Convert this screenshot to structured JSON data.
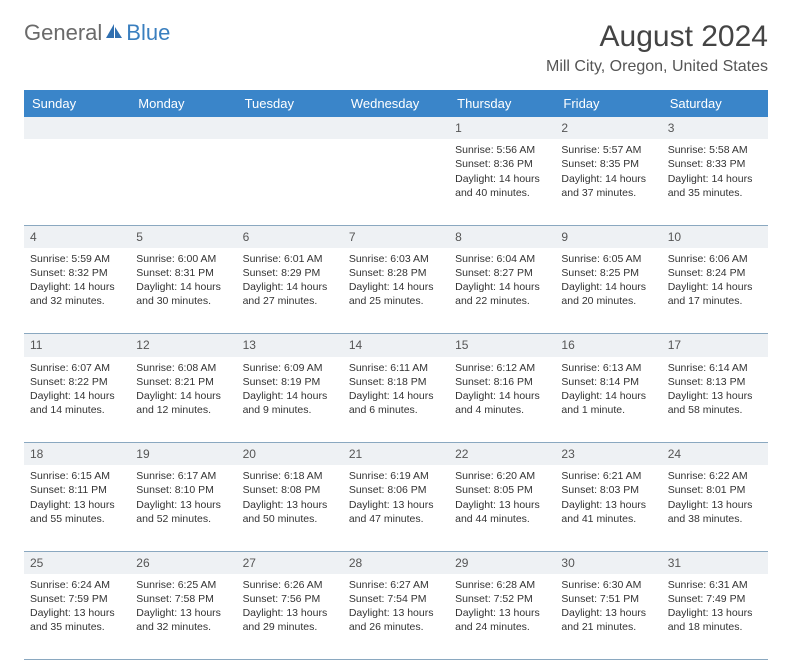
{
  "brand": {
    "general": "General",
    "blue": "Blue"
  },
  "title": "August 2024",
  "location": "Mill City, Oregon, United States",
  "header_color": "#3a85c9",
  "daynum_bg": "#eef1f4",
  "border_color": "#8aa8c0",
  "weekdays": [
    "Sunday",
    "Monday",
    "Tuesday",
    "Wednesday",
    "Thursday",
    "Friday",
    "Saturday"
  ],
  "weeks": [
    [
      null,
      null,
      null,
      null,
      {
        "n": "1",
        "sr": "Sunrise: 5:56 AM",
        "ss": "Sunset: 8:36 PM",
        "d1": "Daylight: 14 hours",
        "d2": "and 40 minutes."
      },
      {
        "n": "2",
        "sr": "Sunrise: 5:57 AM",
        "ss": "Sunset: 8:35 PM",
        "d1": "Daylight: 14 hours",
        "d2": "and 37 minutes."
      },
      {
        "n": "3",
        "sr": "Sunrise: 5:58 AM",
        "ss": "Sunset: 8:33 PM",
        "d1": "Daylight: 14 hours",
        "d2": "and 35 minutes."
      }
    ],
    [
      {
        "n": "4",
        "sr": "Sunrise: 5:59 AM",
        "ss": "Sunset: 8:32 PM",
        "d1": "Daylight: 14 hours",
        "d2": "and 32 minutes."
      },
      {
        "n": "5",
        "sr": "Sunrise: 6:00 AM",
        "ss": "Sunset: 8:31 PM",
        "d1": "Daylight: 14 hours",
        "d2": "and 30 minutes."
      },
      {
        "n": "6",
        "sr": "Sunrise: 6:01 AM",
        "ss": "Sunset: 8:29 PM",
        "d1": "Daylight: 14 hours",
        "d2": "and 27 minutes."
      },
      {
        "n": "7",
        "sr": "Sunrise: 6:03 AM",
        "ss": "Sunset: 8:28 PM",
        "d1": "Daylight: 14 hours",
        "d2": "and 25 minutes."
      },
      {
        "n": "8",
        "sr": "Sunrise: 6:04 AM",
        "ss": "Sunset: 8:27 PM",
        "d1": "Daylight: 14 hours",
        "d2": "and 22 minutes."
      },
      {
        "n": "9",
        "sr": "Sunrise: 6:05 AM",
        "ss": "Sunset: 8:25 PM",
        "d1": "Daylight: 14 hours",
        "d2": "and 20 minutes."
      },
      {
        "n": "10",
        "sr": "Sunrise: 6:06 AM",
        "ss": "Sunset: 8:24 PM",
        "d1": "Daylight: 14 hours",
        "d2": "and 17 minutes."
      }
    ],
    [
      {
        "n": "11",
        "sr": "Sunrise: 6:07 AM",
        "ss": "Sunset: 8:22 PM",
        "d1": "Daylight: 14 hours",
        "d2": "and 14 minutes."
      },
      {
        "n": "12",
        "sr": "Sunrise: 6:08 AM",
        "ss": "Sunset: 8:21 PM",
        "d1": "Daylight: 14 hours",
        "d2": "and 12 minutes."
      },
      {
        "n": "13",
        "sr": "Sunrise: 6:09 AM",
        "ss": "Sunset: 8:19 PM",
        "d1": "Daylight: 14 hours",
        "d2": "and 9 minutes."
      },
      {
        "n": "14",
        "sr": "Sunrise: 6:11 AM",
        "ss": "Sunset: 8:18 PM",
        "d1": "Daylight: 14 hours",
        "d2": "and 6 minutes."
      },
      {
        "n": "15",
        "sr": "Sunrise: 6:12 AM",
        "ss": "Sunset: 8:16 PM",
        "d1": "Daylight: 14 hours",
        "d2": "and 4 minutes."
      },
      {
        "n": "16",
        "sr": "Sunrise: 6:13 AM",
        "ss": "Sunset: 8:14 PM",
        "d1": "Daylight: 14 hours",
        "d2": "and 1 minute."
      },
      {
        "n": "17",
        "sr": "Sunrise: 6:14 AM",
        "ss": "Sunset: 8:13 PM",
        "d1": "Daylight: 13 hours",
        "d2": "and 58 minutes."
      }
    ],
    [
      {
        "n": "18",
        "sr": "Sunrise: 6:15 AM",
        "ss": "Sunset: 8:11 PM",
        "d1": "Daylight: 13 hours",
        "d2": "and 55 minutes."
      },
      {
        "n": "19",
        "sr": "Sunrise: 6:17 AM",
        "ss": "Sunset: 8:10 PM",
        "d1": "Daylight: 13 hours",
        "d2": "and 52 minutes."
      },
      {
        "n": "20",
        "sr": "Sunrise: 6:18 AM",
        "ss": "Sunset: 8:08 PM",
        "d1": "Daylight: 13 hours",
        "d2": "and 50 minutes."
      },
      {
        "n": "21",
        "sr": "Sunrise: 6:19 AM",
        "ss": "Sunset: 8:06 PM",
        "d1": "Daylight: 13 hours",
        "d2": "and 47 minutes."
      },
      {
        "n": "22",
        "sr": "Sunrise: 6:20 AM",
        "ss": "Sunset: 8:05 PM",
        "d1": "Daylight: 13 hours",
        "d2": "and 44 minutes."
      },
      {
        "n": "23",
        "sr": "Sunrise: 6:21 AM",
        "ss": "Sunset: 8:03 PM",
        "d1": "Daylight: 13 hours",
        "d2": "and 41 minutes."
      },
      {
        "n": "24",
        "sr": "Sunrise: 6:22 AM",
        "ss": "Sunset: 8:01 PM",
        "d1": "Daylight: 13 hours",
        "d2": "and 38 minutes."
      }
    ],
    [
      {
        "n": "25",
        "sr": "Sunrise: 6:24 AM",
        "ss": "Sunset: 7:59 PM",
        "d1": "Daylight: 13 hours",
        "d2": "and 35 minutes."
      },
      {
        "n": "26",
        "sr": "Sunrise: 6:25 AM",
        "ss": "Sunset: 7:58 PM",
        "d1": "Daylight: 13 hours",
        "d2": "and 32 minutes."
      },
      {
        "n": "27",
        "sr": "Sunrise: 6:26 AM",
        "ss": "Sunset: 7:56 PM",
        "d1": "Daylight: 13 hours",
        "d2": "and 29 minutes."
      },
      {
        "n": "28",
        "sr": "Sunrise: 6:27 AM",
        "ss": "Sunset: 7:54 PM",
        "d1": "Daylight: 13 hours",
        "d2": "and 26 minutes."
      },
      {
        "n": "29",
        "sr": "Sunrise: 6:28 AM",
        "ss": "Sunset: 7:52 PM",
        "d1": "Daylight: 13 hours",
        "d2": "and 24 minutes."
      },
      {
        "n": "30",
        "sr": "Sunrise: 6:30 AM",
        "ss": "Sunset: 7:51 PM",
        "d1": "Daylight: 13 hours",
        "d2": "and 21 minutes."
      },
      {
        "n": "31",
        "sr": "Sunrise: 6:31 AM",
        "ss": "Sunset: 7:49 PM",
        "d1": "Daylight: 13 hours",
        "d2": "and 18 minutes."
      }
    ]
  ]
}
